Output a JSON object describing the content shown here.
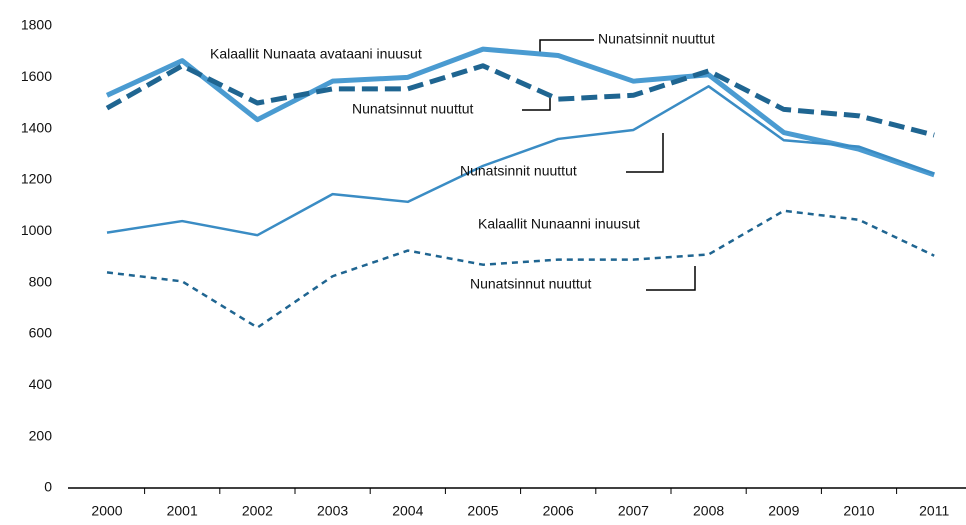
{
  "chart_data": {
    "type": "line",
    "categories": [
      "2000",
      "2001",
      "2002",
      "2003",
      "2004",
      "2005",
      "2006",
      "2007",
      "2008",
      "2009",
      "2010",
      "2011"
    ],
    "series": [
      {
        "color": "#4a9bd1",
        "values": [
          1530,
          1665,
          1435,
          1585,
          1600,
          1710,
          1685,
          1585,
          1610,
          1385,
          1320,
          1220
        ]
      },
      {
        "color": "#1f6591",
        "values": [
          1480,
          1645,
          1500,
          1555,
          1555,
          1645,
          1515,
          1530,
          1625,
          1475,
          1450,
          1375
        ]
      },
      {
        "color": "#3a8cc4",
        "values": [
          995,
          1040,
          985,
          1145,
          1115,
          1255,
          1360,
          1395,
          1565,
          1355,
          1330,
          1225
        ]
      },
      {
        "color": "#1f6591",
        "values": [
          840,
          805,
          625,
          825,
          925,
          870,
          890,
          890,
          910,
          1080,
          1045,
          905
        ]
      }
    ],
    "annotations": [
      "Kalaallit Nunaata avataani inuusut",
      "Nunatsinnit nuuttut",
      "Nunatsinnut nuuttut",
      "Nunatsinnit nuuttut",
      "Kalaallit Nunaanni inuusut",
      "Nunatsinnut nuuttut"
    ],
    "ylim": [
      0,
      1800
    ],
    "yticks": [
      0,
      200,
      400,
      600,
      800,
      1000,
      1200,
      1400,
      1600,
      1800
    ],
    "grid": false
  }
}
